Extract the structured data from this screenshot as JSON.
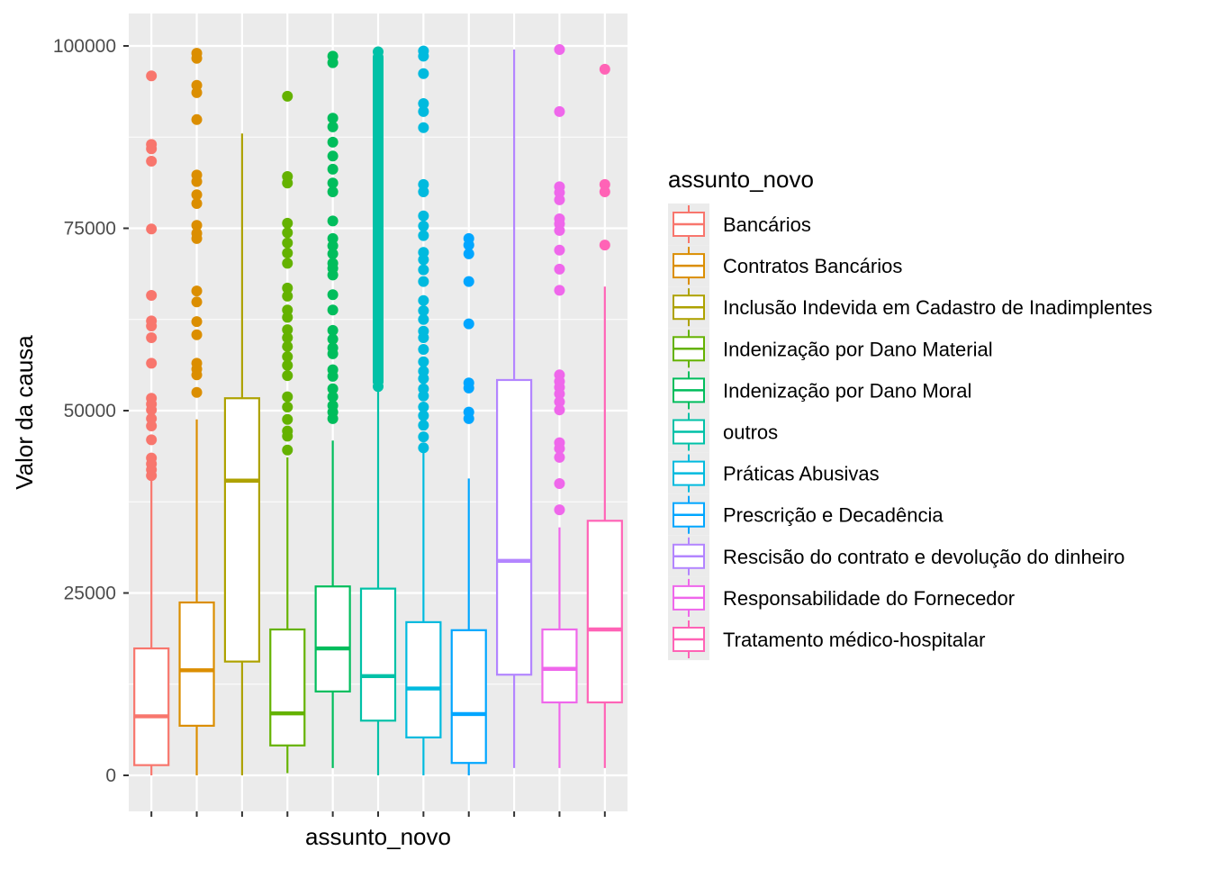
{
  "chart_data": {
    "type": "boxplot",
    "title": "",
    "xlabel": "assunto_novo",
    "ylabel": "Valor da causa",
    "ylim": [
      -9000,
      109000
    ],
    "yticks": [
      0,
      25000,
      50000,
      75000,
      100000
    ],
    "ytick_labels": [
      "0",
      "25000",
      "50000",
      "75000",
      "100000"
    ],
    "grid": true,
    "legend": {
      "title": "assunto_novo",
      "placement": "right"
    },
    "series": [
      {
        "name": "Bancários",
        "color": "#F8766D",
        "whisker_low": 0,
        "q1": 1400,
        "median": 8100,
        "q3": 17400,
        "whisker_high": 40900,
        "outliers": [
          95900,
          86500,
          85900,
          84200,
          74900,
          65800,
          62300,
          61600,
          60000,
          56500,
          51700,
          50900,
          50100,
          48900,
          47900,
          46000,
          43500,
          42700,
          41900,
          41100
        ]
      },
      {
        "name": "Contratos Bancários",
        "color": "#DB8E00",
        "whisker_low": 0,
        "q1": 6800,
        "median": 14400,
        "q3": 23700,
        "whisker_high": 48800,
        "outliers": [
          99000,
          98300,
          94600,
          93600,
          89900,
          82300,
          81400,
          79600,
          78400,
          75400,
          74300,
          73600,
          66400,
          64900,
          62200,
          60400,
          56500,
          55700,
          54900,
          52500
        ]
      },
      {
        "name": "Inclusão Indevida em Cadastro de Inadimplentes",
        "color": "#AEA200",
        "whisker_low": 0,
        "q1": 15600,
        "median": 40400,
        "q3": 51700,
        "whisker_high": 88000,
        "outliers": []
      },
      {
        "name": "Indenização por Dano Material",
        "color": "#64B200",
        "whisker_low": 300,
        "q1": 4100,
        "median": 8500,
        "q3": 20000,
        "whisker_high": 43600,
        "outliers": [
          93100,
          82100,
          81200,
          75700,
          74400,
          73000,
          71600,
          70200,
          66800,
          65700,
          63800,
          62800,
          61100,
          60000,
          58800,
          57400,
          56200,
          54800,
          51900,
          50500,
          48800,
          47200,
          46500,
          44600
        ]
      },
      {
        "name": "Indenização por Dano Moral",
        "color": "#00BD5C",
        "whisker_low": 1000,
        "q1": 11500,
        "median": 17400,
        "q3": 25900,
        "whisker_high": 45900,
        "outliers": [
          98600,
          97700,
          90100,
          88900,
          86800,
          84900,
          83100,
          81200,
          80000,
          76000,
          73600,
          72600,
          71500,
          70200,
          69500,
          68600,
          65900,
          63800,
          61000,
          59800,
          58600,
          57800,
          55600,
          54700,
          53000,
          51900,
          50700,
          49800,
          48900
        ]
      },
      {
        "name": "outros",
        "color": "#00C1A7",
        "whisker_low": 0,
        "q1": 7500,
        "median": 13600,
        "q3": 25600,
        "whisker_high": 53000,
        "outliers": [
          99200,
          98000,
          97000,
          96000,
          95000,
          94000,
          93000,
          92000,
          91000,
          90000,
          89000,
          88000,
          87000,
          86000,
          85000,
          84000,
          83000,
          82000,
          81000,
          80000,
          79000,
          78000,
          77000,
          76000,
          75000,
          74000,
          73000,
          72000,
          71000,
          70000,
          69000,
          68000,
          67000,
          66000,
          65000,
          64000,
          63000,
          62000,
          61000,
          60000,
          59000,
          58000,
          57000,
          56000,
          55000,
          54000,
          53300
        ]
      },
      {
        "name": "Práticas Abusivas",
        "color": "#00BADE",
        "whisker_low": 0,
        "q1": 5200,
        "median": 11900,
        "q3": 21000,
        "whisker_high": 44400,
        "outliers": [
          99300,
          98600,
          96200,
          92100,
          91000,
          88800,
          81000,
          80000,
          76700,
          75300,
          74000,
          71700,
          70700,
          69300,
          67700,
          65100,
          63700,
          62500,
          60900,
          60000,
          58400,
          56700,
          55400,
          54400,
          53000,
          52000,
          50500,
          49300,
          48000,
          46400,
          44900
        ]
      },
      {
        "name": "Prescrição e Decadência",
        "color": "#00A6FF",
        "whisker_low": 0,
        "q1": 1700,
        "median": 8400,
        "q3": 19900,
        "whisker_high": 40700,
        "outliers": [
          73600,
          72700,
          71500,
          67700,
          61900,
          53800,
          53100,
          49800,
          48900
        ]
      },
      {
        "name": "Rescisão do contrato e devolução do dinheiro",
        "color": "#B385FF",
        "whisker_low": 1000,
        "q1": 13800,
        "median": 29400,
        "q3": 54200,
        "whisker_high": 99500,
        "outliers": []
      },
      {
        "name": "Responsabilidade do Fornecedor",
        "color": "#EF67EB",
        "whisker_low": 1000,
        "q1": 10000,
        "median": 14600,
        "q3": 20000,
        "whisker_high": 34000,
        "outliers": [
          99500,
          91000,
          80700,
          79900,
          78900,
          76300,
          75600,
          74700,
          72000,
          69400,
          66500,
          54900,
          54000,
          53200,
          52300,
          51200,
          50100,
          45600,
          44800,
          43600,
          40000,
          36400
        ]
      },
      {
        "name": "Tratamento médico-hospitalar",
        "color": "#FF63B6",
        "whisker_low": 1000,
        "q1": 10000,
        "median": 20000,
        "q3": 34900,
        "whisker_high": 67000,
        "outliers": [
          96800,
          81000,
          80000,
          72700
        ]
      }
    ]
  }
}
